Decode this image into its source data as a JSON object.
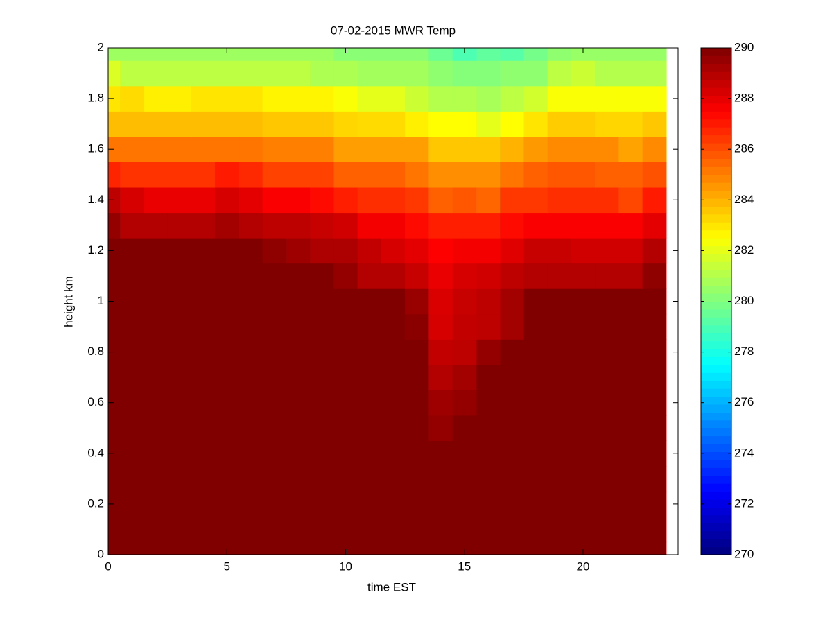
{
  "chart_data": {
    "type": "heatmap",
    "title": "07-02-2015 MWR Temp",
    "xlabel": "time EST",
    "ylabel": "height km",
    "x": [
      0,
      1,
      2,
      3,
      4,
      5,
      6,
      7,
      8,
      9,
      10,
      11,
      12,
      13,
      14,
      15,
      16,
      17,
      18,
      19,
      20,
      21,
      22,
      23
    ],
    "y": [
      0,
      0.1,
      0.2,
      0.3,
      0.4,
      0.5,
      0.6,
      0.7,
      0.8,
      0.9,
      1,
      1.1,
      1.2,
      1.3,
      1.4,
      1.5,
      1.6,
      1.7,
      1.8,
      1.9,
      2
    ],
    "z": [
      [
        290,
        290,
        290,
        290,
        290,
        290,
        290,
        290,
        290,
        290,
        290,
        290,
        290,
        290,
        290,
        290,
        290,
        290,
        290,
        290,
        290,
        290,
        290,
        290
      ],
      [
        290,
        290,
        290,
        290,
        290,
        290,
        290,
        290,
        290,
        290,
        290,
        290,
        290,
        290,
        290,
        290,
        290,
        290,
        290,
        290,
        290,
        290,
        290,
        290
      ],
      [
        290,
        290,
        290,
        290,
        290,
        290,
        290,
        290,
        290,
        290,
        290,
        290,
        290,
        290,
        290,
        290,
        290,
        290,
        290,
        290,
        290,
        290,
        290,
        290
      ],
      [
        290,
        290,
        290,
        290,
        290,
        290,
        290,
        290,
        290,
        290,
        290,
        290,
        290,
        290,
        290,
        290,
        290,
        290,
        290,
        290,
        290,
        290,
        290,
        290
      ],
      [
        290,
        290,
        290,
        290,
        290,
        290,
        290,
        290,
        290,
        290,
        290,
        290,
        290,
        290,
        290,
        290,
        290,
        290,
        290,
        290,
        290,
        290,
        290,
        290
      ],
      [
        290,
        290,
        290,
        290,
        290,
        290,
        290,
        290,
        290,
        290,
        290,
        290,
        290,
        290,
        289.6,
        290,
        290,
        290,
        290,
        290,
        290,
        290,
        290,
        290
      ],
      [
        290,
        290,
        290,
        290,
        290,
        290,
        290,
        290,
        290,
        290,
        290,
        290,
        290,
        290,
        289.4,
        289.6,
        290,
        290,
        290,
        290,
        290,
        290,
        290,
        290
      ],
      [
        290,
        290,
        290,
        290,
        290,
        290,
        290,
        290,
        290,
        290,
        290,
        290,
        290,
        290,
        289,
        289.3,
        290,
        290,
        290,
        290,
        290,
        290,
        290,
        290
      ],
      [
        290,
        290,
        290,
        290,
        290,
        290,
        290,
        290,
        290,
        290,
        290,
        290,
        290,
        290,
        288.7,
        288.8,
        289.6,
        290,
        290,
        290,
        290,
        290,
        290,
        290
      ],
      [
        290,
        290,
        290,
        290,
        290,
        290,
        290,
        290,
        290,
        290,
        290,
        290,
        290,
        289.8,
        288.3,
        288.7,
        288.8,
        289.3,
        290,
        290,
        290,
        290,
        290,
        290
      ],
      [
        290,
        290,
        290,
        290,
        290,
        290,
        290,
        290,
        290,
        290,
        290,
        290,
        290,
        289.5,
        288.2,
        288.6,
        288.8,
        289.3,
        290,
        290,
        290,
        290,
        290,
        290
      ],
      [
        290,
        290,
        290,
        290,
        290,
        290,
        290,
        290,
        290,
        290,
        289.6,
        289,
        289,
        288.6,
        287.9,
        288.3,
        288.4,
        288.8,
        289,
        289,
        289,
        289,
        289,
        289.7
      ],
      [
        290,
        290,
        290,
        290,
        290,
        290,
        290,
        289.7,
        289.4,
        289.1,
        289.1,
        288.7,
        288.3,
        288,
        287.5,
        287.7,
        287.7,
        288.1,
        288.6,
        288.6,
        288.4,
        288.4,
        288.4,
        289
      ],
      [
        289.6,
        289,
        289,
        289,
        289,
        289.3,
        289,
        288.8,
        288.8,
        288.6,
        288.4,
        287.7,
        287.7,
        287.3,
        286.9,
        286.9,
        286.9,
        287.3,
        287.6,
        287.6,
        287.6,
        287.6,
        287.6,
        288
      ],
      [
        288.8,
        288.3,
        287.9,
        287.9,
        287.9,
        288.3,
        288,
        287.6,
        287.6,
        287.3,
        286.9,
        286.6,
        286.6,
        286.4,
        285.6,
        285.8,
        285.5,
        286.4,
        286.4,
        286.6,
        286.6,
        286.6,
        286.1,
        287
      ],
      [
        286.8,
        286.5,
        286.5,
        286.5,
        286.5,
        287,
        286.7,
        286.2,
        286.2,
        286.2,
        285.6,
        285.6,
        285.6,
        285.2,
        284.7,
        284.7,
        284.7,
        285.2,
        285.6,
        285.8,
        285.8,
        285.6,
        285.6,
        285.9
      ],
      [
        285.2,
        285.2,
        285.2,
        285.2,
        285.2,
        285.2,
        285.2,
        285,
        285,
        285,
        284.4,
        284.4,
        284.4,
        284.4,
        283.6,
        283.6,
        283.6,
        284,
        284.5,
        284.8,
        284.8,
        284.8,
        284.3,
        284.8
      ],
      [
        283.8,
        283.8,
        283.8,
        283.8,
        283.8,
        283.8,
        283.8,
        283.6,
        283.6,
        283.6,
        283.3,
        283.2,
        283.2,
        282.8,
        282.5,
        282.5,
        282,
        282.5,
        283,
        283.5,
        283.5,
        283.3,
        283.3,
        283.6
      ],
      [
        283,
        283.2,
        282.8,
        282.8,
        283,
        283,
        283,
        282.7,
        282.7,
        282.7,
        282.4,
        282,
        282,
        281.5,
        281,
        281,
        280.8,
        281.2,
        281.6,
        282.4,
        282.4,
        282.4,
        282.4,
        282.4
      ],
      [
        281.8,
        281.2,
        281.2,
        281.2,
        281.2,
        281.2,
        281.2,
        281.2,
        281.2,
        280.9,
        280.9,
        280.7,
        280.7,
        280.7,
        280.3,
        280.1,
        280.1,
        280.3,
        280.3,
        281.2,
        281.5,
        281,
        281,
        281
      ],
      [
        280.6,
        280.6,
        280.6,
        280.6,
        280.6,
        280.6,
        280.6,
        280.6,
        280.6,
        280.6,
        280.2,
        280.2,
        280.2,
        280.2,
        279.6,
        279,
        279.4,
        279.2,
        279.8,
        280.3,
        280.5,
        280.5,
        280.5,
        280.5
      ]
    ],
    "colormap": "jet",
    "clim": [
      270,
      290
    ],
    "cticks": [
      270,
      272,
      274,
      276,
      278,
      280,
      282,
      284,
      286,
      288,
      290
    ],
    "xlim": [
      0,
      24
    ],
    "ylim": [
      0,
      2
    ],
    "xticks": [
      0,
      5,
      10,
      15,
      20
    ],
    "yticks": [
      0,
      0.2,
      0.4,
      0.6,
      0.8,
      1,
      1.2,
      1.4,
      1.6,
      1.8,
      2
    ]
  }
}
